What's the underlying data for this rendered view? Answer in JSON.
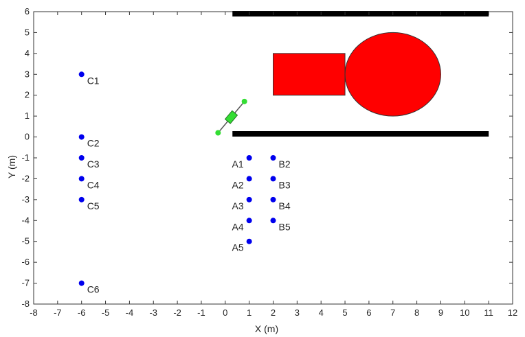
{
  "chart_data": {
    "type": "scatter",
    "title": "",
    "xlabel": "X (m)",
    "ylabel": "Y (m)",
    "xlim": [
      -8,
      12
    ],
    "ylim": [
      -8,
      6
    ],
    "xticks": [
      -8,
      -7,
      -6,
      -5,
      -4,
      -3,
      -2,
      -1,
      0,
      1,
      2,
      3,
      4,
      5,
      6,
      7,
      8,
      9,
      10,
      11,
      12
    ],
    "yticks": [
      6,
      5,
      4,
      3,
      2,
      1,
      0,
      -1,
      -2,
      -3,
      -4,
      -5,
      -6,
      -7,
      -8
    ],
    "grid": false,
    "points": [
      {
        "label": "C1",
        "x": -6,
        "y": 3
      },
      {
        "label": "C2",
        "x": -6,
        "y": 0
      },
      {
        "label": "C3",
        "x": -6,
        "y": -1
      },
      {
        "label": "C4",
        "x": -6,
        "y": -2
      },
      {
        "label": "C5",
        "x": -6,
        "y": -3
      },
      {
        "label": "C6",
        "x": -6,
        "y": -7
      },
      {
        "label": "A1",
        "x": 1,
        "y": -1
      },
      {
        "label": "A2",
        "x": 1,
        "y": -2
      },
      {
        "label": "A3",
        "x": 1,
        "y": -3
      },
      {
        "label": "A4",
        "x": 1,
        "y": -4
      },
      {
        "label": "A5",
        "x": 1,
        "y": -5
      },
      {
        "label": "B2",
        "x": 2,
        "y": -1
      },
      {
        "label": "B3",
        "x": 2,
        "y": -2
      },
      {
        "label": "B4",
        "x": 2,
        "y": -3
      },
      {
        "label": "B5",
        "x": 2,
        "y": -4
      }
    ],
    "walls": [
      {
        "x1": 0.3,
        "x2": 11,
        "y": 5.9
      },
      {
        "x1": 0.3,
        "x2": 11,
        "y": 0.15
      }
    ],
    "rectangle": {
      "x1": 2,
      "x2": 5,
      "y1": 2,
      "y2": 4
    },
    "ellipse": {
      "cx": 7,
      "cy": 3,
      "rx": 2,
      "ry": 2
    },
    "robot": {
      "x1": -0.3,
      "y1": 0.2,
      "x2": 0.8,
      "y2": 1.7
    },
    "colors": {
      "points": "#0000ee",
      "obstacles": "#ff0000",
      "walls": "#000000",
      "robot": "#33dd33",
      "axes": "#333333"
    }
  }
}
